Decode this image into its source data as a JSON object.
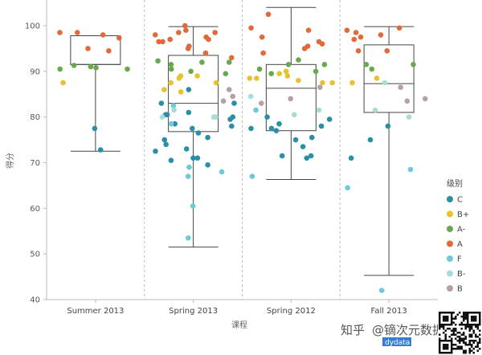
{
  "chart_data": {
    "type": "box-strip",
    "title": "",
    "xlabel": "课程",
    "ylabel": "得分",
    "ylim": [
      40,
      105
    ],
    "yticks": [
      40,
      50,
      60,
      70,
      80,
      90,
      100
    ],
    "categories": [
      "Summer 2013",
      "Spring 2013",
      "Spring 2012",
      "Fall 2013"
    ],
    "legend": {
      "title": "级别",
      "placement": "right",
      "items": [
        {
          "name": "C",
          "color": "#2a8fa6"
        },
        {
          "name": "B+",
          "color": "#e8c12f"
        },
        {
          "name": "A-",
          "color": "#6aa84f"
        },
        {
          "name": "A",
          "color": "#e06a3a"
        },
        {
          "name": "F",
          "color": "#6ec9d9"
        },
        {
          "name": "B-",
          "color": "#a8ddd6"
        },
        {
          "name": "B",
          "color": "#b3a2a0"
        }
      ]
    },
    "boxes": [
      {
        "category": "Summer 2013",
        "min": 72.5,
        "q1": 91.5,
        "median": 91.5,
        "q3": 97.8,
        "max": 97.8
      },
      {
        "category": "Spring 2013",
        "min": 51.5,
        "q1": 76.8,
        "median": 83.0,
        "q3": 93.5,
        "max": 99.8
      },
      {
        "category": "Spring 2012",
        "min": 66.3,
        "q1": 77.0,
        "median": 86.3,
        "q3": 91.5,
        "max": 104.0
      },
      {
        "category": "Fall 2013",
        "min": 45.3,
        "q1": 81.0,
        "median": 87.3,
        "q3": 95.8,
        "max": 99.8
      }
    ],
    "points": [
      {
        "category": "Summer 2013",
        "grade": "C",
        "values": [
          77.5,
          72.8
        ]
      },
      {
        "category": "Summer 2013",
        "grade": "B+",
        "values": [
          87.5
        ]
      },
      {
        "category": "Summer 2013",
        "grade": "A-",
        "values": [
          91.3,
          91.0,
          90.8,
          90.5,
          90.5
        ]
      },
      {
        "category": "Summer 2013",
        "grade": "A",
        "values": [
          98.0,
          95.0,
          98.5,
          97.3,
          94.5,
          98.5
        ]
      },
      {
        "category": "Spring 2013",
        "grade": "C",
        "values": [
          71.0,
          70.5,
          69.5,
          75.0,
          76.5,
          77.5,
          74.0,
          72.5,
          79.5,
          80.0,
          83.0,
          81.0,
          78.0,
          80.5,
          73.0,
          71.0,
          75.5,
          78.5,
          80.5,
          83.0,
          86.0
        ]
      },
      {
        "category": "Spring 2013",
        "grade": "B+",
        "values": [
          87.5,
          89.0,
          88.5,
          86.0,
          87.5,
          85.5,
          89.0
        ]
      },
      {
        "category": "Spring 2013",
        "grade": "A-",
        "values": [
          92.3,
          92.0,
          90.5,
          89.5,
          90.0,
          91.5,
          92.0
        ]
      },
      {
        "category": "Spring 2013",
        "grade": "A",
        "values": [
          100.0,
          98.5,
          97.5,
          96.5,
          97.0,
          95.5,
          96.5,
          98.0,
          99.0,
          97.0,
          94.0,
          93.0,
          98.5,
          95.0
        ]
      },
      {
        "category": "Spring 2013",
        "grade": "F",
        "values": [
          60.5,
          67.0,
          68.0,
          69.0,
          53.5,
          82.5,
          78.5
        ]
      },
      {
        "category": "Spring 2013",
        "grade": "B-",
        "values": [
          80.0,
          80.0,
          81.5,
          80.0
        ]
      },
      {
        "category": "Spring 2013",
        "grade": "B",
        "values": [
          83.5,
          84.5,
          86.0
        ]
      },
      {
        "category": "Spring 2012",
        "grade": "C",
        "values": [
          78.0,
          75.5,
          73.5,
          75.0,
          77.5,
          77.0,
          78.5,
          80.0,
          71.5,
          71.0,
          71.5,
          77.5,
          79.5
        ]
      },
      {
        "category": "Spring 2012",
        "grade": "B+",
        "values": [
          88.5,
          89.5,
          88.0,
          90.0,
          88.5,
          87.5,
          89.0,
          87.5
        ]
      },
      {
        "category": "Spring 2012",
        "grade": "A-",
        "values": [
          92.5,
          91.5,
          90.5,
          90.0,
          91.5,
          89.5
        ]
      },
      {
        "category": "Spring 2012",
        "grade": "A",
        "values": [
          99.5,
          97.5,
          99.0,
          95.5,
          95.0,
          96.0,
          102.5,
          96.5,
          94.0
        ]
      },
      {
        "category": "Spring 2012",
        "grade": "F",
        "values": [
          67.0,
          81.5
        ]
      },
      {
        "category": "Spring 2012",
        "grade": "B-",
        "values": [
          84.5,
          80.5,
          81.5
        ]
      },
      {
        "category": "Spring 2012",
        "grade": "B",
        "values": [
          86.5,
          83.0,
          84.0
        ]
      },
      {
        "category": "Fall 2013",
        "grade": "C",
        "values": [
          71.0,
          75.0,
          78.0
        ]
      },
      {
        "category": "Fall 2013",
        "grade": "B+",
        "values": [
          87.5,
          88.5
        ]
      },
      {
        "category": "Fall 2013",
        "grade": "A-",
        "values": [
          91.5,
          90.5,
          91.5
        ]
      },
      {
        "category": "Fall 2013",
        "grade": "A",
        "values": [
          94.5,
          97.5,
          99.0,
          99.5,
          97.0,
          98.0,
          98.5,
          94.5
        ]
      },
      {
        "category": "Fall 2013",
        "grade": "F",
        "values": [
          42.0,
          64.5,
          68.5
        ]
      },
      {
        "category": "Fall 2013",
        "grade": "B-",
        "values": [
          87.5,
          80.0,
          81.5
        ]
      },
      {
        "category": "Fall 2013",
        "grade": "B",
        "values": [
          84.0,
          83.5,
          86.5
        ]
      }
    ]
  },
  "watermark": {
    "text_left": "知乎",
    "text_at": "@",
    "text_right": "镝次元数据",
    "text_small": "dydata"
  }
}
